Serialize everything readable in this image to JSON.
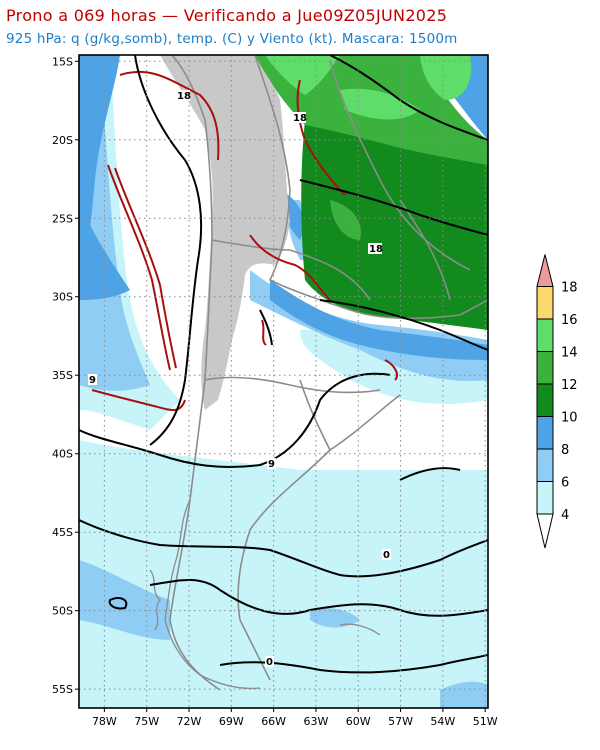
{
  "header": {
    "title": "Prono a 069 horas — Verificando a Jue09Z05JUN2025",
    "subtitle": "925 hPa: q (g/kg,somb), temp. (C) y Viento (kt). Mascara: 1500m"
  },
  "axes": {
    "lat_labels": [
      "15S",
      "20S",
      "25S",
      "30S",
      "35S",
      "40S",
      "45S",
      "50S",
      "55S"
    ],
    "lat_values": [
      -15,
      -20,
      -25,
      -30,
      -35,
      -40,
      -45,
      -50,
      -55
    ],
    "lon_labels": [
      "78W",
      "75W",
      "72W",
      "69W",
      "66W",
      "63W",
      "60W",
      "57W",
      "54W",
      "51W"
    ],
    "lon_values": [
      -78,
      -75,
      -72,
      -69,
      -66,
      -63,
      -60,
      -57,
      -54,
      -51
    ],
    "lat_range": [
      -56.2,
      -14.6
    ],
    "lon_range": [
      -79.8,
      -50.8
    ],
    "grid": "dotted"
  },
  "colorbar": {
    "levels": [
      "4",
      "6",
      "8",
      "10",
      "12",
      "14",
      "16",
      "18"
    ],
    "colors": [
      "#ffffff",
      "#c6f4f9",
      "#8fcdf5",
      "#4da3e6",
      "#128a1e",
      "#3bb13e",
      "#5fdd6a",
      "#fcd96c",
      "#eb9c99"
    ]
  },
  "contour_labels": {
    "temp_18_north": "18",
    "temp_18_east": "18",
    "temp_18_south": "18",
    "temp_9_west": "9",
    "temp_9_center": "9",
    "temp_0_east": "0",
    "temp_0_south": "0"
  },
  "mask_color": "#c8c8c8"
}
